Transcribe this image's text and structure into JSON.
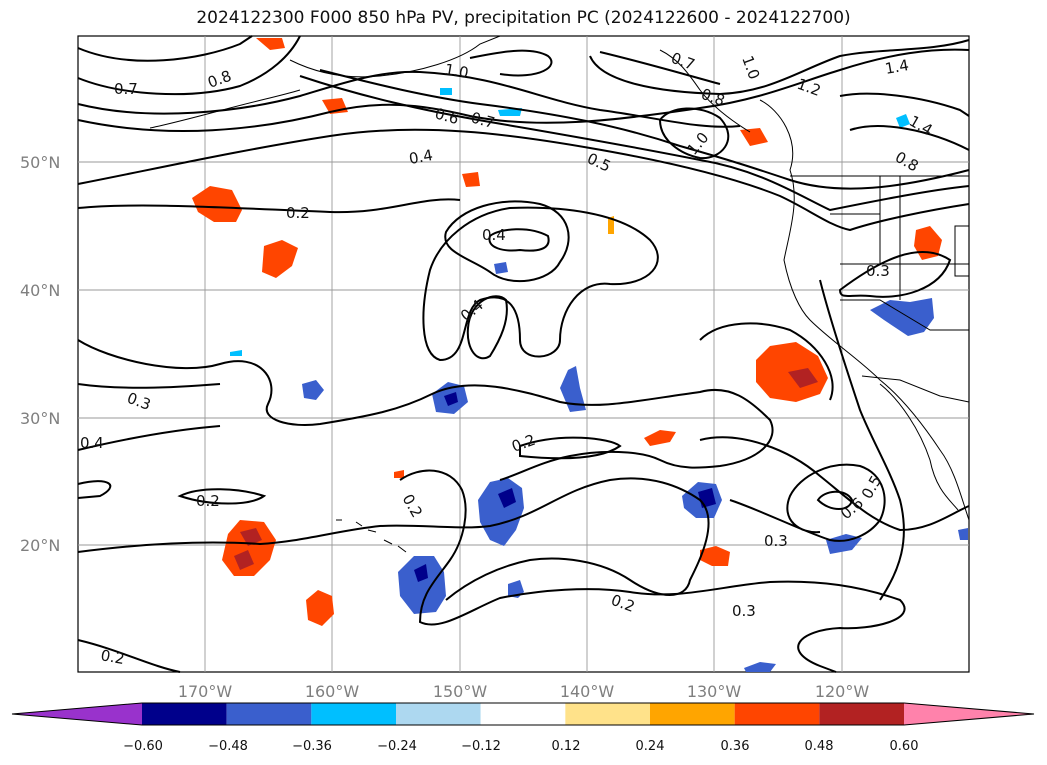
{
  "title": "2024122300 F000 850 hPa PV, precipitation PC (2024122600 - 2024122700)",
  "latitude_labels": [
    "50°N",
    "40°N",
    "30°N",
    "20°N"
  ],
  "longitude_labels": [
    "170°W",
    "160°W",
    "150°W",
    "140°W",
    "130°W",
    "120°W"
  ],
  "contour_labels": [
    "0.7",
    "0.8",
    "1.0",
    "0.6",
    "0.7",
    "0.4",
    "0.5",
    "0.2",
    "0.4",
    "0.4",
    "0.3",
    "0.4",
    "0.2",
    "0.2",
    "0.2",
    "0.3",
    "0.6",
    "0.5",
    "0.3",
    "0.2",
    "0.3",
    "0.2",
    "1.4",
    "1.2",
    "1.4",
    "0.8",
    "0.7",
    "0.8",
    "1.0",
    "1.0"
  ],
  "colorbar": {
    "ticks": [
      "−0.60",
      "−0.48",
      "−0.36",
      "−0.24",
      "−0.12",
      "0.12",
      "0.24",
      "0.36",
      "0.48",
      "0.60"
    ],
    "colors": [
      "#9932cc",
      "#00008b",
      "#3a5fcd",
      "#00bfff",
      "#add8f0",
      "#ffffff",
      "#ffe28a",
      "#ffa500",
      "#ff4500",
      "#b22222",
      "#ff82ab"
    ]
  }
}
